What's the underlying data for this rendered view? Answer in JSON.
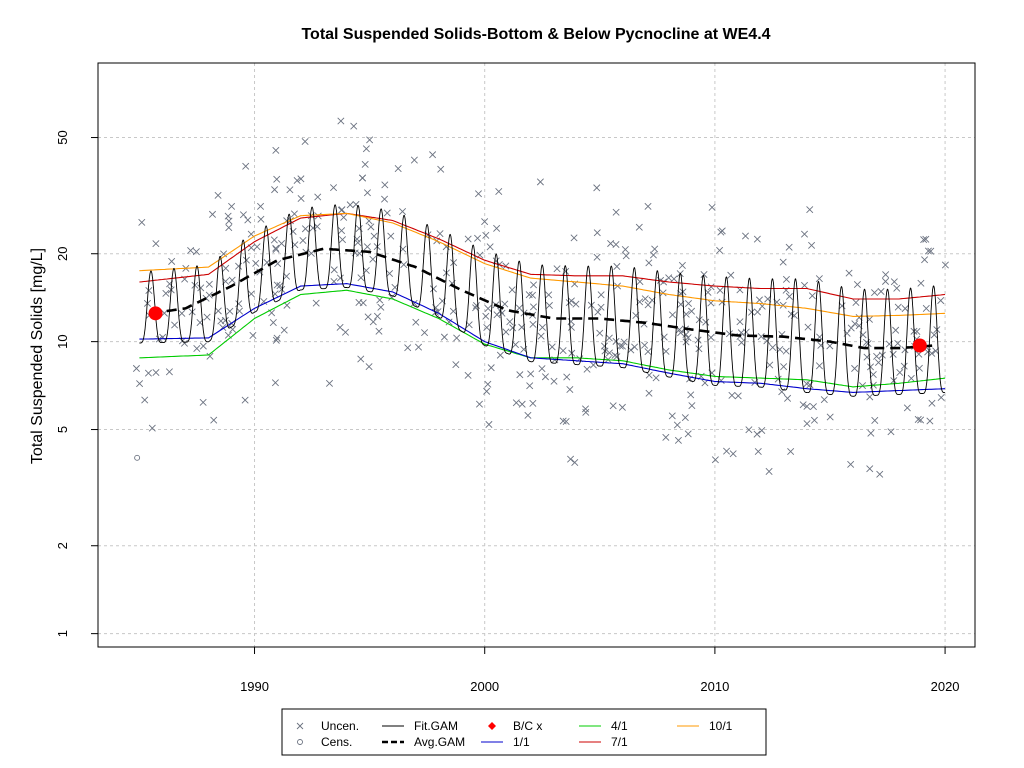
{
  "chart_data": {
    "type": "scatter",
    "title": "Total Suspended Solids-Bottom & Below Pycnocline at WE4.4",
    "ylabel": "Total Suspended Solids [mg/L]",
    "xlabel": "",
    "xlim": [
      1983.2,
      2021.3
    ],
    "ylim": [
      0.9,
      90
    ],
    "y_scale": "log",
    "x_ticks": [
      1990,
      2000,
      2010,
      2020
    ],
    "y_ticks": [
      1,
      2,
      5,
      10,
      20,
      50
    ],
    "grid": true,
    "legend_position": "bottom",
    "legend": [
      {
        "label": "Uncen.",
        "symbol": "x",
        "color": "#6b7280"
      },
      {
        "label": "Cens.",
        "symbol": "o",
        "color": "#6b7280"
      },
      {
        "label": "Fit.GAM",
        "symbol": "line",
        "color": "#000000"
      },
      {
        "label": "Avg.GAM",
        "symbol": "dashed",
        "color": "#000000"
      },
      {
        "label": "B/C x",
        "symbol": "diamond",
        "color": "#ff0000"
      },
      {
        "label": "1/1",
        "symbol": "line",
        "color": "#0000cc"
      },
      {
        "label": "4/1",
        "symbol": "line",
        "color": "#00cc00"
      },
      {
        "label": "7/1",
        "symbol": "line",
        "color": "#cc0000"
      },
      {
        "label": "10/1",
        "symbol": "line",
        "color": "#ff9900"
      }
    ],
    "series": [
      {
        "name": "Avg.GAM",
        "x": [
          1985.5,
          1987,
          1989,
          1991,
          1993,
          1995,
          1997,
          1999,
          2001,
          2003,
          2005,
          2007,
          2009,
          2011,
          2013,
          2015,
          2016.5,
          2018,
          2019.5
        ],
        "y": [
          12.5,
          13.0,
          15.5,
          19.0,
          20.8,
          20.3,
          18.0,
          15.0,
          12.8,
          12.0,
          12.0,
          11.6,
          11.0,
          10.5,
          10.4,
          10.0,
          9.5,
          9.5,
          9.7
        ]
      },
      {
        "name": "1/1",
        "x": [
          1985,
          1988,
          1990,
          1992,
          1994,
          1996,
          1998,
          2000,
          2002,
          2004,
          2006,
          2008,
          2010,
          2012,
          2014,
          2016,
          2018,
          2020
        ],
        "y": [
          10.2,
          10.3,
          13.0,
          15.5,
          15.8,
          14.8,
          12.5,
          10.0,
          8.8,
          8.6,
          8.4,
          7.8,
          7.3,
          7.2,
          6.9,
          6.7,
          6.8,
          6.9
        ]
      },
      {
        "name": "4/1",
        "x": [
          1985,
          1988,
          1990,
          1992,
          1994,
          1996,
          1998,
          2000,
          2002,
          2004,
          2006,
          2008,
          2010,
          2012,
          2014,
          2016,
          2018,
          2020
        ],
        "y": [
          8.8,
          9.0,
          12.0,
          14.5,
          15.0,
          14.0,
          12.0,
          9.8,
          8.8,
          8.8,
          8.6,
          8.0,
          7.6,
          7.5,
          7.4,
          7.0,
          7.2,
          7.5
        ]
      },
      {
        "name": "7/1",
        "x": [
          1985,
          1988,
          1990,
          1992,
          1994,
          1996,
          1998,
          2000,
          2002,
          2004,
          2006,
          2008,
          2010,
          2012,
          2014,
          2016,
          2018,
          2020
        ],
        "y": [
          16.0,
          17.0,
          22.0,
          26.5,
          27.5,
          26.0,
          22.5,
          19.0,
          17.0,
          16.8,
          16.8,
          16.0,
          15.5,
          15.2,
          15.2,
          14.0,
          14.0,
          14.5
        ]
      },
      {
        "name": "10/1",
        "x": [
          1985,
          1988,
          1990,
          1992,
          1994,
          1996,
          1998,
          2000,
          2002,
          2004,
          2006,
          2008,
          2010,
          2012,
          2014,
          2016,
          2018,
          2020
        ],
        "y": [
          17.5,
          18.0,
          23.0,
          27.0,
          27.5,
          25.5,
          22.0,
          18.5,
          16.5,
          16.0,
          15.5,
          14.5,
          13.8,
          13.5,
          13.0,
          12.2,
          12.3,
          12.5
        ]
      },
      {
        "name": "B/C x",
        "x": [
          1985.7,
          2018.9
        ],
        "y": [
          12.5,
          9.7
        ]
      }
    ],
    "fit_gam_cycles": {
      "start": 1985.0,
      "end": 2020.0,
      "period_years": 1
    }
  }
}
